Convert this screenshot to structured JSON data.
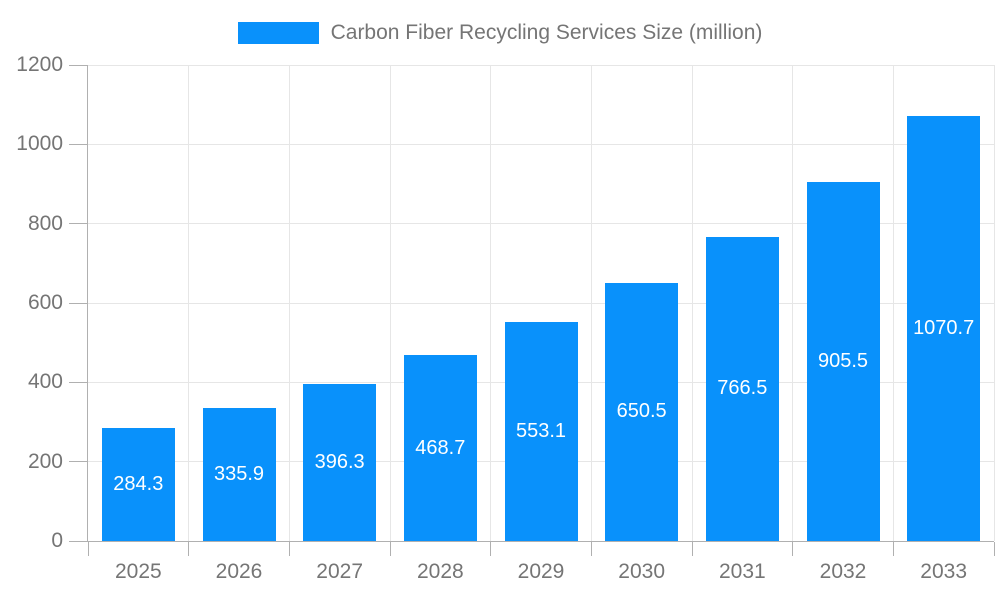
{
  "page": {
    "background": "#ffffff"
  },
  "legend": {
    "label": "Carbon Fiber Recycling Services Size (million)",
    "swatch_color": "#0991fb"
  },
  "chart_data": {
    "type": "bar",
    "title": "Carbon Fiber Recycling Services Size (million)",
    "categories": [
      "2025",
      "2026",
      "2027",
      "2028",
      "2029",
      "2030",
      "2031",
      "2032",
      "2033"
    ],
    "series": [
      {
        "name": "Carbon Fiber Recycling Services Size (million)",
        "values": [
          284.3,
          335.9,
          396.3,
          468.7,
          553.1,
          650.5,
          766.5,
          905.5,
          1070.7
        ]
      }
    ],
    "xlabel": "",
    "ylabel": "",
    "ylim": [
      0,
      1200
    ],
    "y_ticks": [
      0,
      200,
      400,
      600,
      800,
      1000,
      1200
    ],
    "grid": true,
    "legend_position": "top",
    "value_labels": "inside-center",
    "colors": {
      "bar": "#0991fb",
      "gridline": "#e6e6e6",
      "axis_line": "#b0b0b0",
      "axis_text": "#757575",
      "value_label_text": "#ffffff",
      "background": "#ffffff"
    }
  }
}
